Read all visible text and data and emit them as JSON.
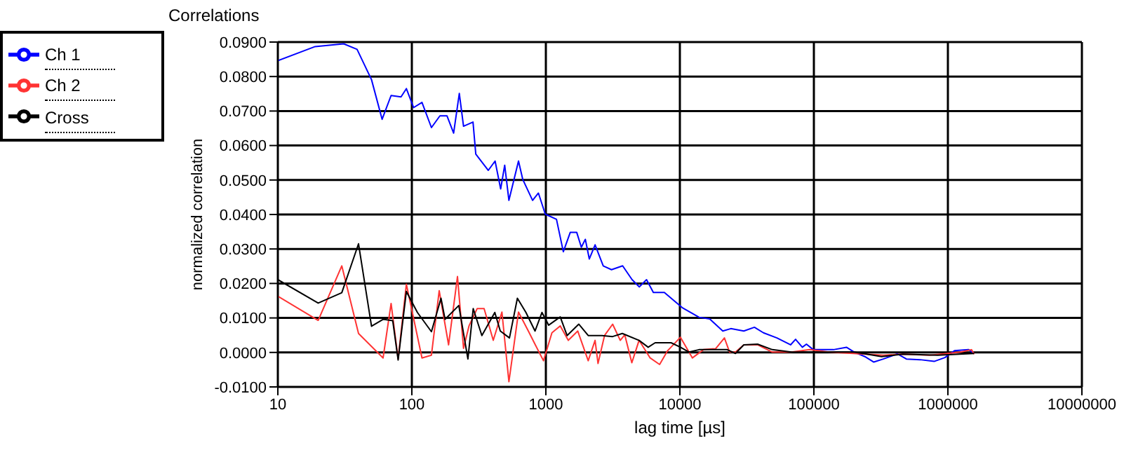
{
  "chart_data": {
    "type": "line",
    "title": "Correlations",
    "xlabel": "lag time [µs]",
    "ylabel": "normalized correlation",
    "log": "x",
    "grid": true,
    "legend": "top left",
    "marker": "none",
    "line_style": "solid",
    "xlim": [
      10,
      10000000
    ],
    "xticks": [
      10,
      100,
      1000,
      10000,
      100000,
      1000000,
      10000000
    ],
    "ylim": [
      -0.01,
      0.09
    ],
    "yticks": [
      {
        "value": -0.01,
        "label": "-0.0100"
      },
      {
        "value": 0,
        "label": "0.0000"
      },
      {
        "value": 0.01,
        "label": "0.0100"
      },
      {
        "value": 0.02,
        "label": "0.0200"
      },
      {
        "value": 0.03,
        "label": "0.0300"
      },
      {
        "value": 0.04,
        "label": "0.0400"
      },
      {
        "value": 0.05,
        "label": "0.0500"
      },
      {
        "value": 0.06,
        "label": "0.0600"
      },
      {
        "value": 0.07,
        "label": "0.0700"
      },
      {
        "value": 0.08,
        "label": "0.0800"
      },
      {
        "value": 0.09,
        "label": "0.0900"
      }
    ],
    "series": [
      {
        "name": "Ch 1",
        "color": "#0000ff",
        "x": [
          10,
          19,
          31,
          39,
          50,
          60,
          70,
          83,
          91,
          103,
          119,
          140,
          162,
          183,
          205,
          226,
          243,
          286,
          300,
          372,
          418,
          460,
          493,
          530,
          625,
          672,
          796,
          880,
          990,
          1200,
          1350,
          1520,
          1700,
          1840,
          1970,
          2110,
          2330,
          2680,
          3090,
          3740,
          4400,
          4980,
          5640,
          6340,
          7660,
          9050,
          10400,
          13900,
          16700,
          20900,
          24000,
          30000,
          36000,
          42000,
          53000,
          67000,
          73000,
          82000,
          88000,
          99000,
          140000,
          175000,
          200000,
          240000,
          280000,
          330000,
          420000,
          490000,
          620000,
          790000,
          950000,
          1120000,
          1430000,
          1570000
        ],
        "values": [
          0.0846,
          0.0887,
          0.0895,
          0.0879,
          0.0791,
          0.0676,
          0.0745,
          0.0741,
          0.0765,
          0.071,
          0.0725,
          0.0652,
          0.0686,
          0.0686,
          0.0636,
          0.0751,
          0.0656,
          0.0668,
          0.0575,
          0.0528,
          0.0555,
          0.0474,
          0.0543,
          0.0441,
          0.0555,
          0.0502,
          0.0441,
          0.0462,
          0.0401,
          0.0386,
          0.0292,
          0.0348,
          0.0348,
          0.0305,
          0.0328,
          0.0271,
          0.0312,
          0.0251,
          0.024,
          0.0251,
          0.0211,
          0.019,
          0.0211,
          0.0174,
          0.0174,
          0.015,
          0.013,
          0.0102,
          0.0097,
          0.0062,
          0.0069,
          0.0062,
          0.0073,
          0.0057,
          0.0042,
          0.0022,
          0.0038,
          0.0015,
          0.0024,
          0.0008,
          0.0008,
          0.0015,
          0.0001,
          -0.0012,
          -0.0028,
          -0.0019,
          -0.0004,
          -0.0019,
          -0.0021,
          -0.0026,
          -0.0015,
          0.0005,
          0.0008,
          -0.0003
        ]
      },
      {
        "name": "Ch 2",
        "color": "#ff3333",
        "x": [
          10,
          20,
          30,
          40,
          61,
          70,
          79,
          91,
          119,
          140,
          160,
          188,
          219,
          243,
          267,
          307,
          346,
          405,
          470,
          530,
          625,
          740,
          860,
          960,
          1110,
          1280,
          1470,
          1730,
          2070,
          2330,
          2450,
          2740,
          3150,
          3590,
          3880,
          4380,
          4960,
          6000,
          7060,
          8100,
          10100,
          12400,
          15000,
          18500,
          21500,
          23500,
          26000,
          30000,
          38000,
          49000,
          68000,
          93000,
          130000,
          330000,
          460000,
          730000,
          1000000,
          1240000,
          1500000,
          1570000
        ],
        "values": [
          0.0163,
          0.0093,
          0.0251,
          0.0055,
          -0.0016,
          0.0142,
          -0.0019,
          0.0198,
          -0.0016,
          -0.0008,
          0.0179,
          0.0022,
          0.022,
          0.0012,
          0.0077,
          0.0127,
          0.0127,
          0.0035,
          0.0117,
          -0.0085,
          0.0117,
          0.0062,
          0.0012,
          -0.0024,
          0.0057,
          0.0077,
          0.0035,
          0.0062,
          -0.0024,
          0.0035,
          -0.0032,
          0.0049,
          0.0082,
          0.0035,
          0.0051,
          -0.003,
          0.0035,
          -0.0016,
          -0.0035,
          0.0005,
          0.0044,
          -0.0016,
          0.0008,
          0.0011,
          0.0042,
          0.0001,
          0.0001,
          0.0022,
          0.0022,
          0.0001,
          0.0001,
          0.0008,
          0.0001,
          -0.0008,
          -0.0005,
          -0.0008,
          -0.0003,
          0.0001,
          0.0008,
          -0.0005
        ]
      },
      {
        "name": "Cross",
        "color": "#000000",
        "x": [
          10,
          20,
          30,
          40,
          50,
          61,
          72,
          79,
          91,
          110,
          140,
          165,
          177,
          224,
          262,
          287,
          333,
          416,
          457,
          535,
          613,
          710,
          830,
          935,
          1050,
          1280,
          1440,
          1760,
          2070,
          2620,
          3150,
          3720,
          4960,
          5800,
          6540,
          8600,
          10100,
          11700,
          13900,
          22500,
          26000,
          30000,
          38000,
          49000,
          68000,
          93000,
          200000,
          320000,
          460000,
          840000,
          1570000
        ],
        "values": [
          0.0211,
          0.0143,
          0.0173,
          0.0315,
          0.0076,
          0.0096,
          0.0092,
          -0.0022,
          0.0177,
          0.0116,
          0.006,
          0.0157,
          0.0096,
          0.0136,
          -0.0019,
          0.0127,
          0.0049,
          0.0116,
          0.0062,
          0.0042,
          0.0157,
          0.0116,
          0.0062,
          0.0116,
          0.0079,
          0.0103,
          0.0049,
          0.0082,
          0.0049,
          0.0049,
          0.0046,
          0.0055,
          0.0035,
          0.0015,
          0.0028,
          0.0028,
          0.0015,
          0.0001,
          0.0008,
          0.0008,
          -0.0003,
          0.0022,
          0.0024,
          0.0008,
          0.0001,
          0.0001,
          0.0001,
          -0.0012,
          -0.0005,
          -0.0008,
          -0.0003
        ]
      }
    ]
  }
}
